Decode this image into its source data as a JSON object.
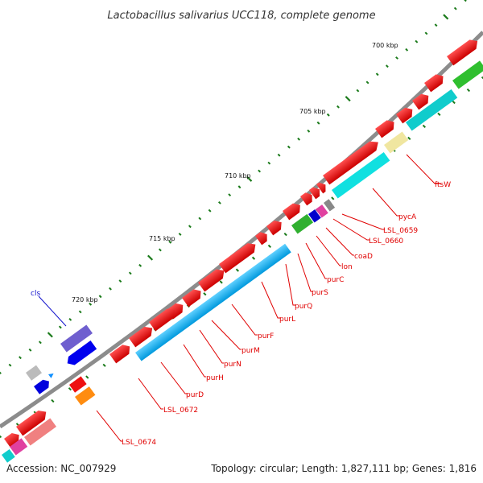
{
  "title": "Lactobacillus salivarius UCC118, complete genome",
  "accession_text": "Accession: NC_007929",
  "summary_text": "Topology: circular; Length: 1,827,111 bp; Genes: 1,816",
  "colors": {
    "backbone": "#8c8c8c",
    "forward_cds": "#ee0000",
    "reverse_cds": "#00aaee",
    "label_red": "#e00000",
    "label_blue": "#1010cc",
    "tick": "#1a7a1a"
  },
  "scale_labels": [
    "700 kbp",
    "705 kbp",
    "710 kbp",
    "715 kbp",
    "720 kbp"
  ],
  "gene_labels": [
    {
      "text": "ftsW",
      "color": "red"
    },
    {
      "text": "pycA",
      "color": "red"
    },
    {
      "text": "LSL_0659",
      "color": "red"
    },
    {
      "text": "LSL_0660",
      "color": "red"
    },
    {
      "text": "coaD",
      "color": "red"
    },
    {
      "text": "lon",
      "color": "red"
    },
    {
      "text": "purC",
      "color": "red"
    },
    {
      "text": "purS",
      "color": "red"
    },
    {
      "text": "purQ",
      "color": "red"
    },
    {
      "text": "purL",
      "color": "red"
    },
    {
      "text": "purF",
      "color": "red"
    },
    {
      "text": "purM",
      "color": "red"
    },
    {
      "text": "purN",
      "color": "red"
    },
    {
      "text": "purH",
      "color": "red"
    },
    {
      "text": "purD",
      "color": "red"
    },
    {
      "text": "LSL_0672",
      "color": "red"
    },
    {
      "text": "LSL_0674",
      "color": "red"
    },
    {
      "text": "cls",
      "color": "blue"
    }
  ]
}
